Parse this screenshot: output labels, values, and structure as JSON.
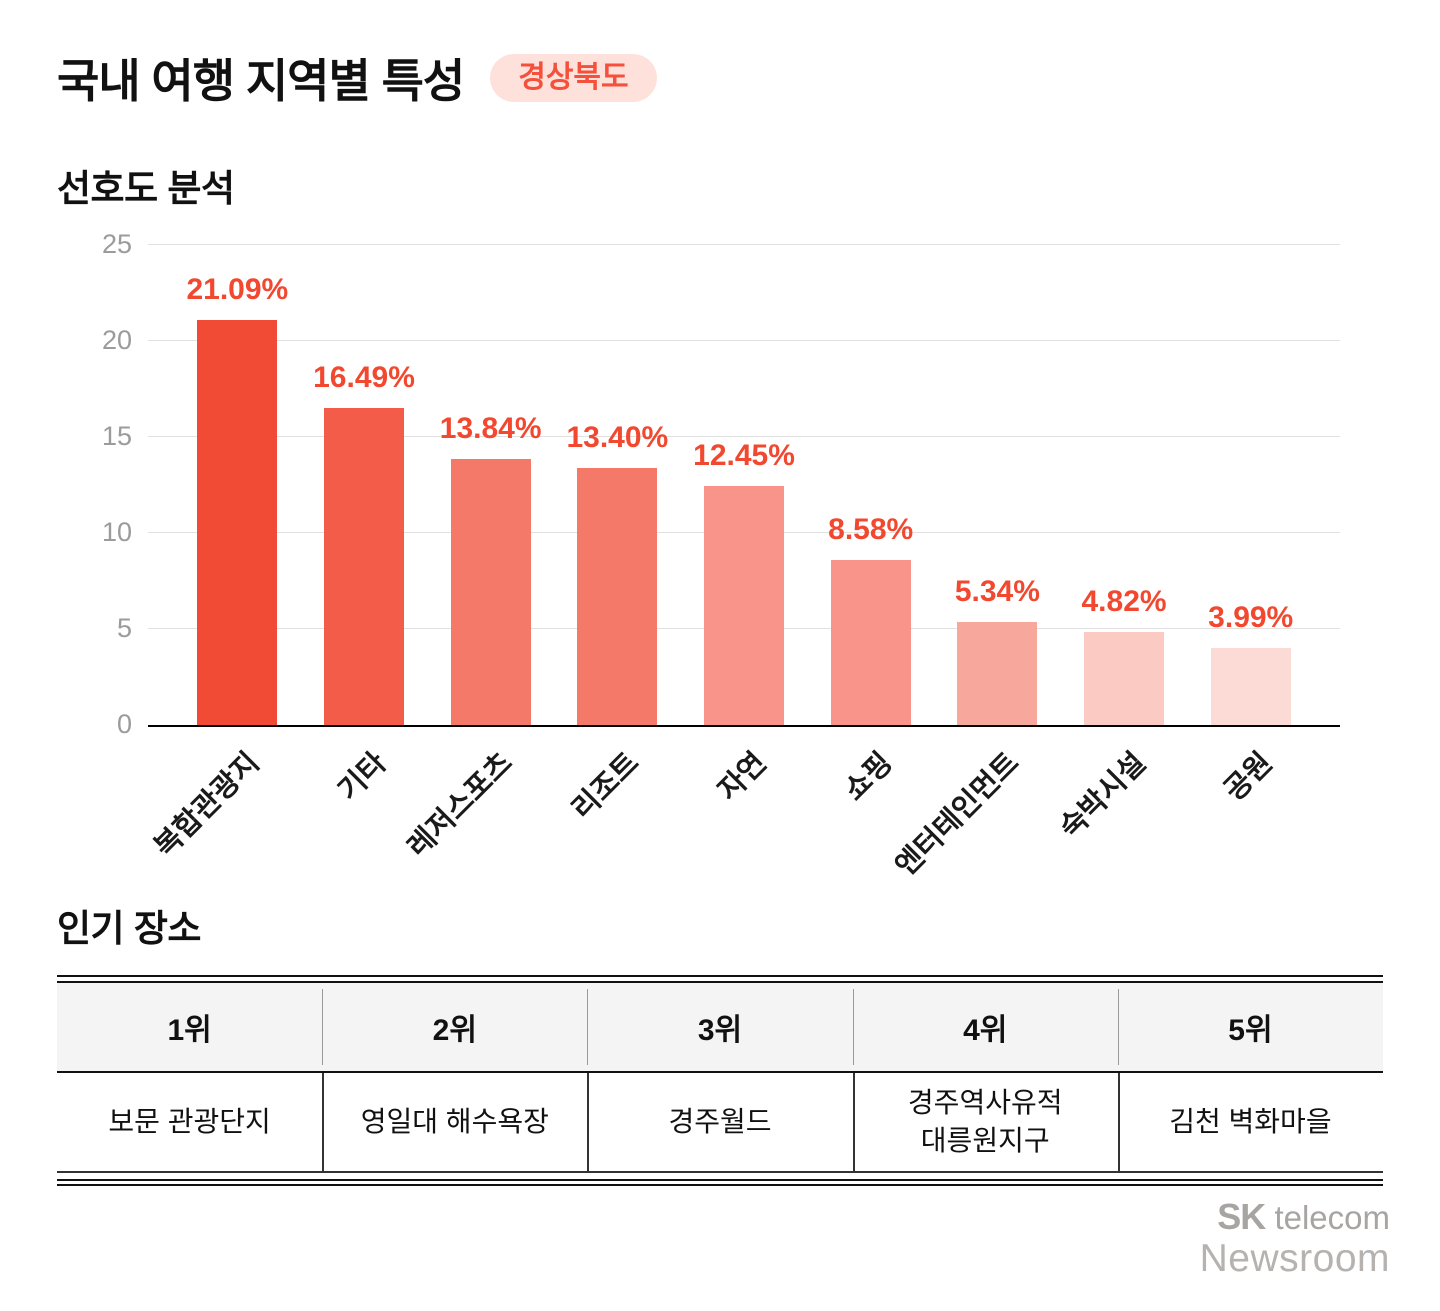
{
  "title": "국내 여행 지역별 특성",
  "badge": "경상북도",
  "sections": {
    "preference": "선호도 분석",
    "places": "인기 장소"
  },
  "chart_data": {
    "type": "bar",
    "title": "선호도 분석",
    "categories": [
      "복합관광지",
      "기타",
      "레저스포츠",
      "리조트",
      "자연",
      "쇼핑",
      "엔터테인먼트",
      "숙박시설",
      "공원"
    ],
    "values": [
      21.09,
      16.49,
      13.84,
      13.4,
      12.45,
      8.58,
      5.34,
      4.82,
      3.99
    ],
    "value_labels": [
      "21.09%",
      "16.49%",
      "13.84%",
      "13.40%",
      "12.45%",
      "8.58%",
      "5.34%",
      "4.82%",
      "3.99%"
    ],
    "bar_colors": [
      "#F24B35",
      "#F35C49",
      "#F57968",
      "#F57968",
      "#F8948A",
      "#F8948A",
      "#F8A79D",
      "#FBCAC3",
      "#FCDBD6"
    ],
    "xlabel": "",
    "ylabel": "",
    "ylim": [
      0,
      25
    ],
    "yticks": [
      0,
      5,
      10,
      15,
      20,
      25
    ],
    "grid": true,
    "legend": false,
    "value_label_color": "#F2482F"
  },
  "table": {
    "headers": [
      "1위",
      "2위",
      "3위",
      "4위",
      "5위"
    ],
    "rows": [
      [
        "보문 관광단지",
        "영일대 해수욕장",
        "경주월드",
        "경주역사유적\n대릉원지구",
        "김천 벽화마을"
      ]
    ]
  },
  "footer": {
    "brand_bold": "SK",
    "brand_rest": " telecom",
    "line2": "Newsroom"
  },
  "colors": {
    "accent": "#F2482F",
    "badge_bg": "#FFE1DB",
    "badge_text": "#F4503B",
    "grid": "#e1e1e1",
    "axis_tick": "#9b9b9b",
    "baseline": "#000000",
    "table_header_bg": "#f4f4f4"
  }
}
